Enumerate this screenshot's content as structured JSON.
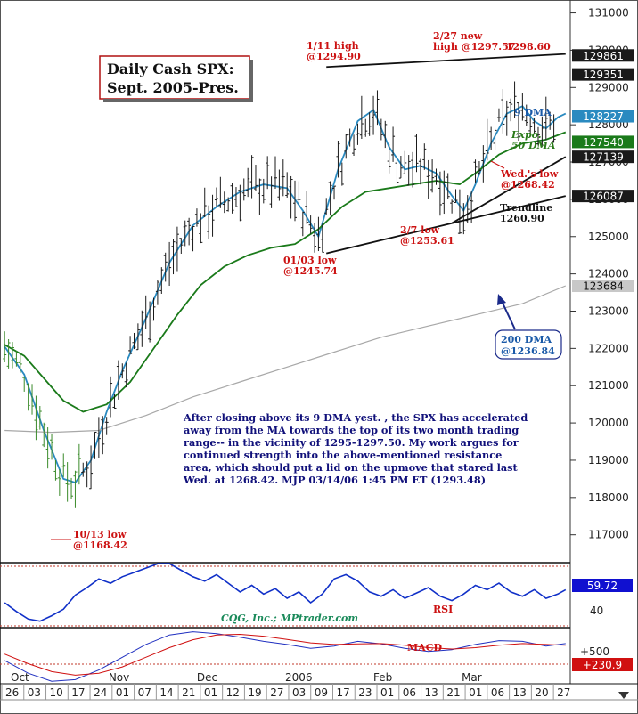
{
  "chart_data": {
    "type": "candlestick",
    "title_lines": [
      "Daily Cash SPX:",
      "Sept. 2005-Pres."
    ],
    "source": "CQG, Inc.; MPtrader.com",
    "ylim": [
      1163,
      1313
    ],
    "y_ticks": [
      1310,
      1300,
      1290,
      1280,
      1270,
      1260,
      1250,
      1240,
      1230,
      1220,
      1210,
      1200,
      1190,
      1180,
      1170
    ],
    "y_tick_labels": [
      "131000",
      "130000",
      "129000",
      "128000",
      "127000",
      "126000",
      "125000",
      "124000",
      "123000",
      "122000",
      "121000",
      "120000",
      "119000",
      "118000",
      "117000"
    ],
    "price_tags": [
      {
        "label": "129861",
        "value": 1298.6,
        "style": "dark"
      },
      {
        "label": "129351",
        "value": 1293.5,
        "style": "dark"
      },
      {
        "label": "128227",
        "value": 1282.3,
        "style": "blue"
      },
      {
        "label": "127540",
        "value": 1275.4,
        "style": "green"
      },
      {
        "label": "127139",
        "value": 1271.4,
        "style": "dark"
      },
      {
        "label": "126087",
        "value": 1260.9,
        "style": "dark"
      },
      {
        "label": "123684",
        "value": 1236.8,
        "style": "gray"
      }
    ],
    "x_tick_labels": [
      "26",
      "03",
      "10",
      "17",
      "24",
      "01",
      "07",
      "14",
      "21",
      "01",
      "12",
      "19",
      "27",
      "03",
      "09",
      "17",
      "23",
      "01",
      "06",
      "13",
      "21",
      "01",
      "06",
      "13",
      "20",
      "27"
    ],
    "month_labels": [
      "Oct",
      "Nov",
      "Dec",
      "2006",
      "Feb",
      "Mar"
    ],
    "series": [
      {
        "name": "9 DMA",
        "color": "#2a8ac0",
        "points": [
          [
            0,
            1220.5
          ],
          [
            5,
            1213
          ],
          [
            10,
            1198
          ],
          [
            15,
            1185
          ],
          [
            18,
            1184
          ],
          [
            22,
            1190
          ],
          [
            26,
            1203
          ],
          [
            30,
            1214
          ],
          [
            36,
            1228
          ],
          [
            42,
            1243
          ],
          [
            48,
            1253
          ],
          [
            54,
            1258
          ],
          [
            60,
            1262
          ],
          [
            66,
            1264
          ],
          [
            72,
            1263
          ],
          [
            76,
            1257
          ],
          [
            80,
            1250
          ],
          [
            85,
            1268
          ],
          [
            90,
            1281
          ],
          [
            94,
            1284
          ],
          [
            98,
            1274
          ],
          [
            102,
            1268
          ],
          [
            106,
            1269
          ],
          [
            110,
            1267
          ],
          [
            114,
            1261
          ],
          [
            117,
            1257
          ],
          [
            120,
            1264
          ],
          [
            124,
            1275
          ],
          [
            128,
            1283
          ],
          [
            132,
            1285
          ],
          [
            135,
            1281
          ],
          [
            138,
            1279
          ],
          [
            141,
            1282
          ],
          [
            143,
            1283
          ]
        ]
      },
      {
        "name": "Expo. 50 DMA",
        "color": "#1a7a1a",
        "points": [
          [
            0,
            1221
          ],
          [
            5,
            1218
          ],
          [
            10,
            1212
          ],
          [
            15,
            1206
          ],
          [
            20,
            1203
          ],
          [
            26,
            1205
          ],
          [
            32,
            1211
          ],
          [
            38,
            1220
          ],
          [
            44,
            1229
          ],
          [
            50,
            1237
          ],
          [
            56,
            1242
          ],
          [
            62,
            1245
          ],
          [
            68,
            1247
          ],
          [
            74,
            1248
          ],
          [
            80,
            1252
          ],
          [
            86,
            1258
          ],
          [
            92,
            1262
          ],
          [
            98,
            1263
          ],
          [
            104,
            1264
          ],
          [
            110,
            1265
          ],
          [
            116,
            1264
          ],
          [
            120,
            1267
          ],
          [
            126,
            1272
          ],
          [
            132,
            1275
          ],
          [
            138,
            1276
          ],
          [
            143,
            1278
          ]
        ]
      },
      {
        "name": "200 DMA",
        "color": "#a8a8a8",
        "points": [
          [
            0,
            1198
          ],
          [
            12,
            1197.5
          ],
          [
            24,
            1198
          ],
          [
            36,
            1202
          ],
          [
            48,
            1207
          ],
          [
            60,
            1211
          ],
          [
            72,
            1215
          ],
          [
            84,
            1219
          ],
          [
            96,
            1223
          ],
          [
            108,
            1226
          ],
          [
            120,
            1229
          ],
          [
            132,
            1232
          ],
          [
            143,
            1236.8
          ]
        ]
      }
    ],
    "trendlines": [
      {
        "name": "upper resistance",
        "from": [
          82,
          1295.5
        ],
        "to": [
          143,
          1299
        ]
      },
      {
        "name": "lower trendline",
        "from": [
          82,
          1245.5
        ],
        "to": [
          143,
          1260.9
        ]
      },
      {
        "name": "steep trendline",
        "from": [
          114,
          1253.6
        ],
        "to": [
          143,
          1271.4
        ]
      }
    ],
    "annotations": [
      {
        "lines": [
          "1/11 high",
          "@1294.90"
        ],
        "color": "red"
      },
      {
        "lines": [
          "2/27 new",
          "high @1297.57",
          "1298.60"
        ],
        "color": "red"
      },
      {
        "lines": [
          "9 DMA"
        ],
        "color": "blue"
      },
      {
        "lines": [
          "Expo.",
          "50 DMA"
        ],
        "color": "green"
      },
      {
        "lines": [
          "Wed.'s low",
          "@1268.42"
        ],
        "color": "red"
      },
      {
        "lines": [
          "Trendline",
          "1260.90"
        ],
        "color": "black"
      },
      {
        "lines": [
          "2/7 low",
          "@1253.61"
        ],
        "color": "red"
      },
      {
        "lines": [
          "01/03 low",
          "@1245.74"
        ],
        "color": "red"
      },
      {
        "lines": [
          "200 DMA",
          "@1236.84"
        ],
        "color": "blue"
      },
      {
        "lines": [
          "10/13 low",
          "@1168.42"
        ],
        "color": "red"
      }
    ],
    "commentary": [
      "After closing above its 9 DMA yest. , the SPX has accelerated",
      "away from the MA towards the top of its two month trading",
      "range-- in the vicinity of 1295-1297.50. My work argues for",
      "continued strength into the above-mentioned resistance",
      "area, which should put a lid on the upmove that stared last",
      "Wed. at 1268.42.  MJP 03/14/06 1:45 PM ET (1293.48)"
    ],
    "rsi": {
      "label": "RSI",
      "value_tag": "59.72",
      "tick": "40",
      "color": "#1030c8",
      "points": [
        [
          0,
          48
        ],
        [
          3,
          40
        ],
        [
          6,
          33
        ],
        [
          9,
          31
        ],
        [
          12,
          36
        ],
        [
          15,
          42
        ],
        [
          18,
          55
        ],
        [
          21,
          62
        ],
        [
          24,
          70
        ],
        [
          27,
          66
        ],
        [
          30,
          72
        ],
        [
          33,
          76
        ],
        [
          36,
          80
        ],
        [
          39,
          84
        ],
        [
          42,
          86
        ],
        [
          45,
          78
        ],
        [
          48,
          72
        ],
        [
          51,
          68
        ],
        [
          54,
          74
        ],
        [
          57,
          66
        ],
        [
          60,
          58
        ],
        [
          63,
          64
        ],
        [
          66,
          56
        ],
        [
          69,
          61
        ],
        [
          72,
          52
        ],
        [
          75,
          58
        ],
        [
          78,
          48
        ],
        [
          81,
          56
        ],
        [
          84,
          70
        ],
        [
          87,
          74
        ],
        [
          90,
          68
        ],
        [
          93,
          58
        ],
        [
          96,
          54
        ],
        [
          99,
          60
        ],
        [
          102,
          52
        ],
        [
          105,
          57
        ],
        [
          108,
          62
        ],
        [
          111,
          54
        ],
        [
          114,
          50
        ],
        [
          117,
          56
        ],
        [
          120,
          64
        ],
        [
          123,
          60
        ],
        [
          126,
          66
        ],
        [
          129,
          58
        ],
        [
          132,
          54
        ],
        [
          135,
          60
        ],
        [
          138,
          52
        ],
        [
          141,
          56
        ],
        [
          143,
          60
        ]
      ]
    },
    "macd": {
      "label": "MACD",
      "value_tag": "+230.9",
      "tick": "+500",
      "series": [
        {
          "name": "MACD",
          "color": "#2030c0",
          "points": [
            [
              0,
              -300
            ],
            [
              6,
              -700
            ],
            [
              12,
              -950
            ],
            [
              18,
              -900
            ],
            [
              24,
              -600
            ],
            [
              30,
              -200
            ],
            [
              36,
              200
            ],
            [
              42,
              500
            ],
            [
              48,
              600
            ],
            [
              54,
              540
            ],
            [
              60,
              430
            ],
            [
              66,
              300
            ],
            [
              72,
              200
            ],
            [
              78,
              80
            ],
            [
              84,
              150
            ],
            [
              90,
              300
            ],
            [
              96,
              220
            ],
            [
              102,
              80
            ],
            [
              108,
              -20
            ],
            [
              114,
              40
            ],
            [
              120,
              200
            ],
            [
              126,
              320
            ],
            [
              132,
              300
            ],
            [
              138,
              150
            ],
            [
              143,
              230
            ]
          ]
        },
        {
          "name": "Signal",
          "color": "#d01010",
          "points": [
            [
              0,
              -100
            ],
            [
              6,
              -400
            ],
            [
              12,
              -650
            ],
            [
              18,
              -760
            ],
            [
              24,
              -700
            ],
            [
              30,
              -500
            ],
            [
              36,
              -200
            ],
            [
              42,
              100
            ],
            [
              48,
              350
            ],
            [
              54,
              500
            ],
            [
              60,
              520
            ],
            [
              66,
              460
            ],
            [
              72,
              360
            ],
            [
              78,
              250
            ],
            [
              84,
              200
            ],
            [
              90,
              220
            ],
            [
              96,
              230
            ],
            [
              102,
              180
            ],
            [
              108,
              100
            ],
            [
              114,
              60
            ],
            [
              120,
              100
            ],
            [
              126,
              180
            ],
            [
              132,
              230
            ],
            [
              138,
              200
            ],
            [
              143,
              180
            ]
          ]
        }
      ]
    }
  }
}
